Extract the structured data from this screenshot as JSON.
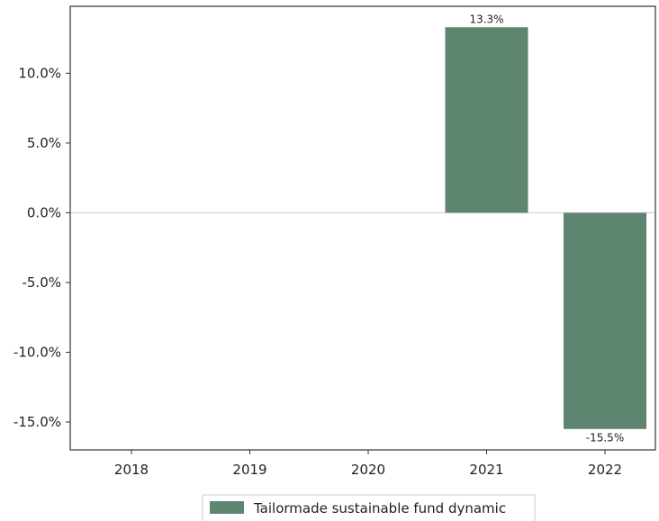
{
  "chart_data": {
    "type": "bar",
    "title": "",
    "xlabel": "",
    "ylabel": "",
    "categories": [
      "2018",
      "2019",
      "2020",
      "2021",
      "2022"
    ],
    "series": [
      {
        "name": "Tailormade sustainable fund dynamic",
        "values": [
          null,
          null,
          null,
          13.3,
          -15.5
        ],
        "data_labels": [
          "",
          "",
          "",
          "13.3%",
          "-15.5%"
        ],
        "color": "#5e8570"
      }
    ],
    "ylim": [
      -17.0,
      14.8
    ],
    "yticks": [
      10.0,
      5.0,
      0.0,
      -5.0,
      -10.0,
      -15.0
    ],
    "ytick_labels": [
      "10.0%",
      "5.0%",
      "0.0%",
      "-5.0%",
      "-10.0%",
      "-15.0%"
    ],
    "zero_line": true,
    "zero_line_color": "#d9d9d9",
    "grid": false,
    "legend_position": "bottom-center"
  }
}
